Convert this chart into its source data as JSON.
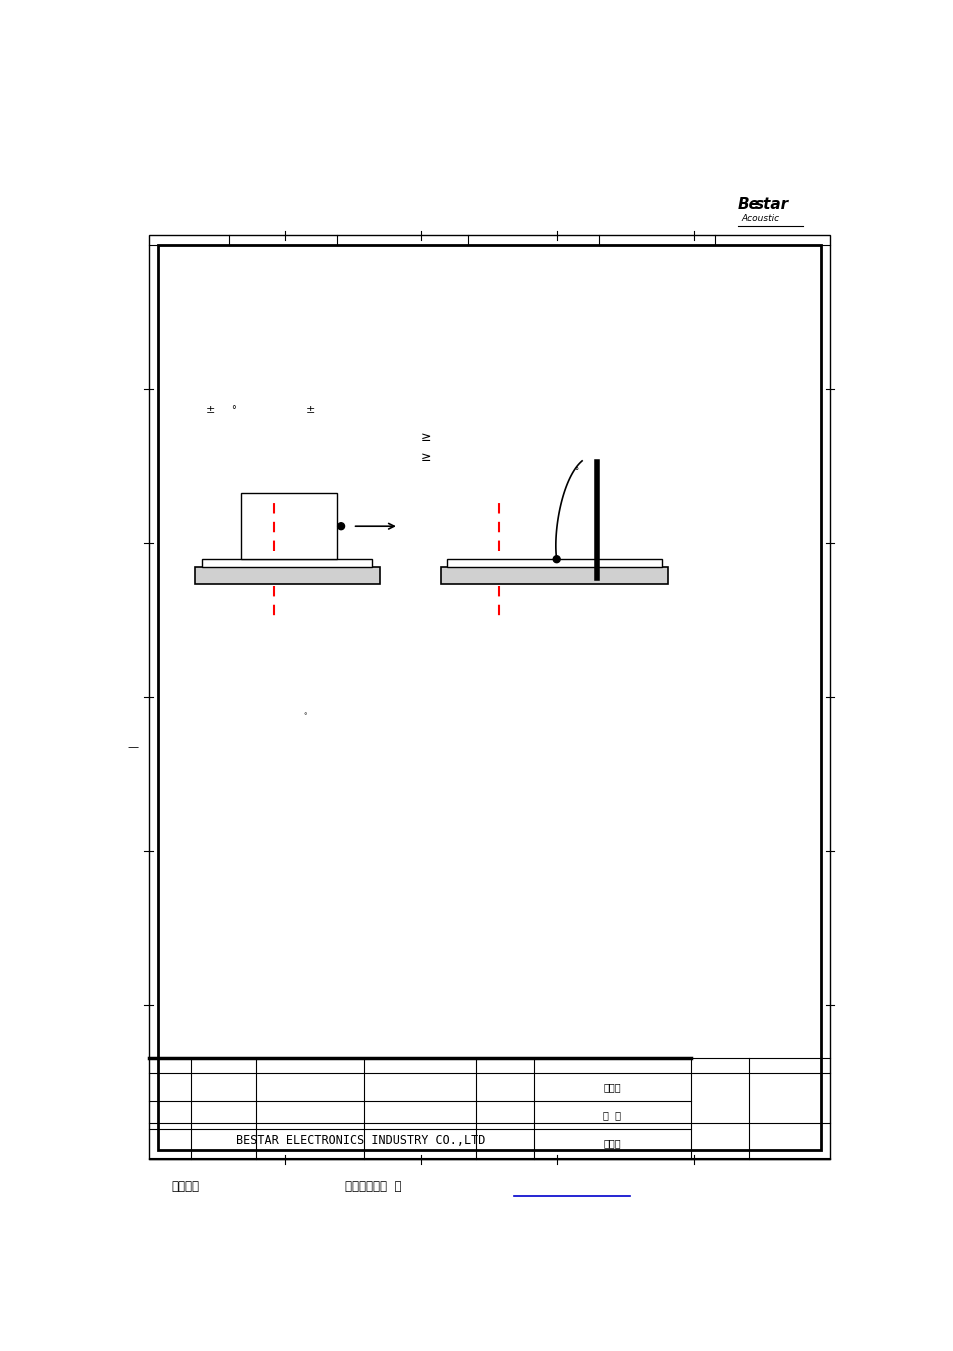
{
  "page_width": 9.54,
  "page_height": 13.51,
  "bg_color": "#ffffff",
  "border_color": "#000000",
  "red_dash_color": "#ff0000",
  "company_name": "BESTAR ELECTRONICS INDUSTRY CO.,LTD",
  "name1": "汤浩君",
  "name2": "赵  崴",
  "name3": "李红元",
  "bottom_text1": "文件使用",
  "bottom_text2": "试用版本创建  烯"
}
